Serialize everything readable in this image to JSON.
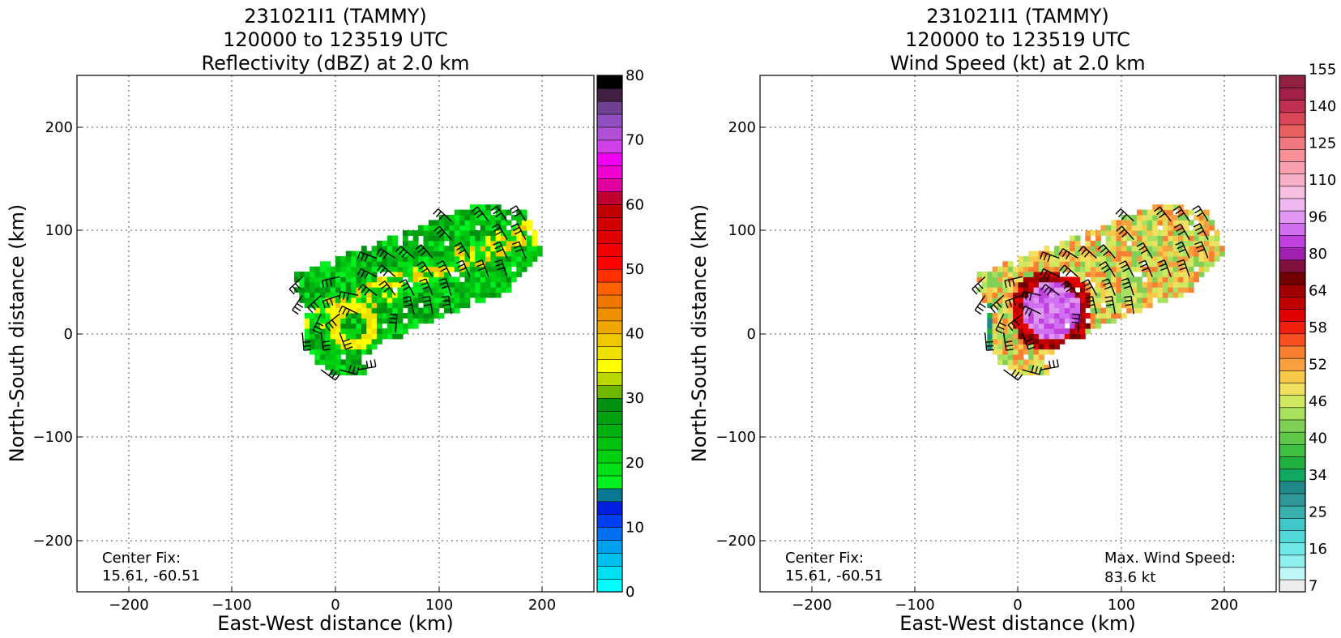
{
  "panels": [
    {
      "title_lines": [
        "231021I1 (TAMMY)",
        "120000 to 123519 UTC",
        "Reflectivity (dBZ) at 2.0 km"
      ],
      "xlabel": "East-West distance (km)",
      "ylabel": "North-South distance (km)",
      "center_label": "Center Fix:",
      "center_value": "15.61, -60.51",
      "colorbar": {
        "colors": [
          "#00ffff",
          "#00e0f0",
          "#00c0f0",
          "#00a0f0",
          "#0070f0",
          "#0040f0",
          "#0020e0",
          "#0a7890",
          "#00f020",
          "#00e018",
          "#00d010",
          "#00c010",
          "#00b010",
          "#00a010",
          "#009010",
          "#70b800",
          "#b8d800",
          "#ffff00",
          "#f0e000",
          "#f0c800",
          "#f0a800",
          "#f09000",
          "#f07800",
          "#ff6000",
          "#ff3000",
          "#ff0000",
          "#f00000",
          "#e00000",
          "#d00000",
          "#c00000",
          "#c00030",
          "#e000a0",
          "#f000d0",
          "#f000f0",
          "#d040e8",
          "#b050d8",
          "#9050c0",
          "#704090",
          "#402040",
          "#000000"
        ],
        "tick_values": [
          "0",
          "10",
          "20",
          "30",
          "40",
          "50",
          "60",
          "70",
          "80"
        ]
      }
    },
    {
      "title_lines": [
        "231021I1 (TAMMY)",
        "120000 to 123519 UTC",
        "Wind Speed (kt) at 2.0 km"
      ],
      "xlabel": "East-West distance (km)",
      "ylabel": "North-South distance (km)",
      "center_label": "Center Fix:",
      "center_value": "15.61, -60.51",
      "max_label": "Max. Wind Speed:",
      "max_value": "83.6 kt",
      "colorbar": {
        "colors": [
          "#ececec",
          "#c0f8f8",
          "#90f0f0",
          "#70e8e8",
          "#50d8d8",
          "#40c8c8",
          "#38b0b0",
          "#309898",
          "#208888",
          "#10a860",
          "#20b040",
          "#40c040",
          "#60c848",
          "#80d058",
          "#a8e060",
          "#d0e860",
          "#f0e060",
          "#f8c848",
          "#f8a040",
          "#f88030",
          "#f85020",
          "#f02010",
          "#e00000",
          "#c00000",
          "#a00000",
          "#700000",
          "#801040",
          "#a020b0",
          "#c040e0",
          "#d070f0",
          "#e098f0",
          "#f0b8f0",
          "#f8c0e0",
          "#f8b0c8",
          "#f8a0b0",
          "#f89098",
          "#f07880",
          "#e86060",
          "#d84858",
          "#c03050",
          "#a02048",
          "#902040"
        ],
        "tick_labels": [
          "7",
          "16",
          "25",
          "34",
          "40",
          "46",
          "52",
          "58",
          "64",
          "80",
          "96",
          "110",
          "125",
          "140",
          "155"
        ]
      }
    }
  ],
  "axes": {
    "xlim": [
      -250,
      250
    ],
    "ylim": [
      -250,
      250
    ],
    "xticks": [
      "−200",
      "−100",
      "0",
      "100",
      "200"
    ],
    "yticks": [
      "−200",
      "−100",
      "0",
      "100",
      "200"
    ]
  },
  "chart_data": [
    {
      "type": "heatmap",
      "title": "231021I1 (TAMMY) 120000 to 123519 UTC Reflectivity (dBZ) at 2.0 km",
      "xlabel": "East-West distance (km)",
      "ylabel": "North-South distance (km)",
      "xlim": [
        -250,
        250
      ],
      "ylim": [
        -250,
        250
      ],
      "grid": true,
      "colorbar_range": [
        0,
        80
      ],
      "colorbar_ticks": [
        0,
        10,
        20,
        30,
        40,
        50,
        60,
        70,
        80
      ],
      "echo_region": {
        "band": {
          "from": [
            -20,
            15
          ],
          "to": [
            185,
            95
          ],
          "half_width_km": 45
        },
        "eye": {
          "x": 15,
          "y": 5
        },
        "dominant_dbz_range": [
          20,
          40
        ],
        "peak_dbz_range": [
          35,
          45
        ]
      },
      "center_fix": "15.61, -60.51"
    },
    {
      "type": "heatmap",
      "title": "231021I1 (TAMMY) 120000 to 123519 UTC Wind Speed (kt) at 2.0 km",
      "xlabel": "East-West distance (km)",
      "ylabel": "North-South distance (km)",
      "xlim": [
        -250,
        250
      ],
      "ylim": [
        -250,
        250
      ],
      "grid": true,
      "colorbar_ticks": [
        7,
        16,
        25,
        34,
        40,
        46,
        52,
        58,
        64,
        80,
        96,
        110,
        125,
        140,
        155
      ],
      "max_wind_kt": 83.6,
      "wind_max_region": {
        "x": 30,
        "y": 20
      },
      "center_fix": "15.61, -60.51"
    }
  ]
}
